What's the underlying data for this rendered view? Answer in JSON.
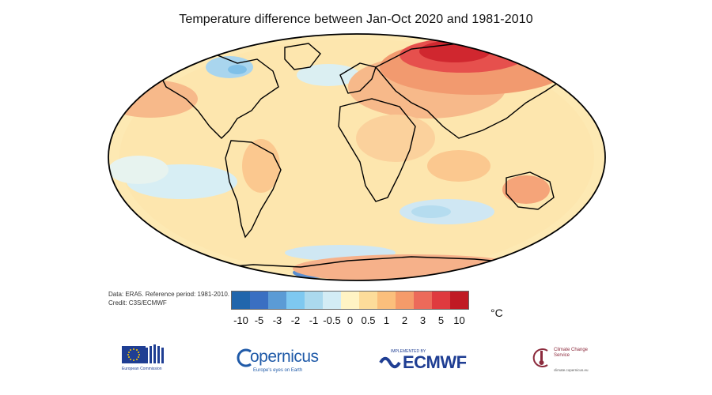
{
  "title": "Temperature difference between Jan-Oct 2020 and 1981-2010",
  "source_note": {
    "line1": "Data: ERA5.  Reference period: 1981-2010.",
    "line2": "Credit: C3S/ECMWF"
  },
  "legend": {
    "unit": "°C",
    "colors": [
      "#2166ac",
      "#3a6fc2",
      "#5b9bd5",
      "#7ec8f0",
      "#abd9ee",
      "#d3ecf5",
      "#fff3c4",
      "#fddc9a",
      "#fbbf7c",
      "#f59b6a",
      "#ec6a5a",
      "#df3a3f",
      "#c01a24"
    ],
    "ticks": [
      "-10",
      "-5",
      "-3",
      "-2",
      "-1",
      "-0.5",
      "0",
      "0.5",
      "1",
      "2",
      "3",
      "5",
      "10"
    ]
  },
  "logos": {
    "eu_caption": "European Commission",
    "copernicus_name": "opernicus",
    "copernicus_tag": "Europe's eyes on Earth",
    "ecmwf_small": "IMPLEMENTED BY",
    "ecmwf_name": "ECMWF",
    "c3s_name": "Climate Change Service",
    "c3s_url": "climate.copernicus.eu"
  }
}
